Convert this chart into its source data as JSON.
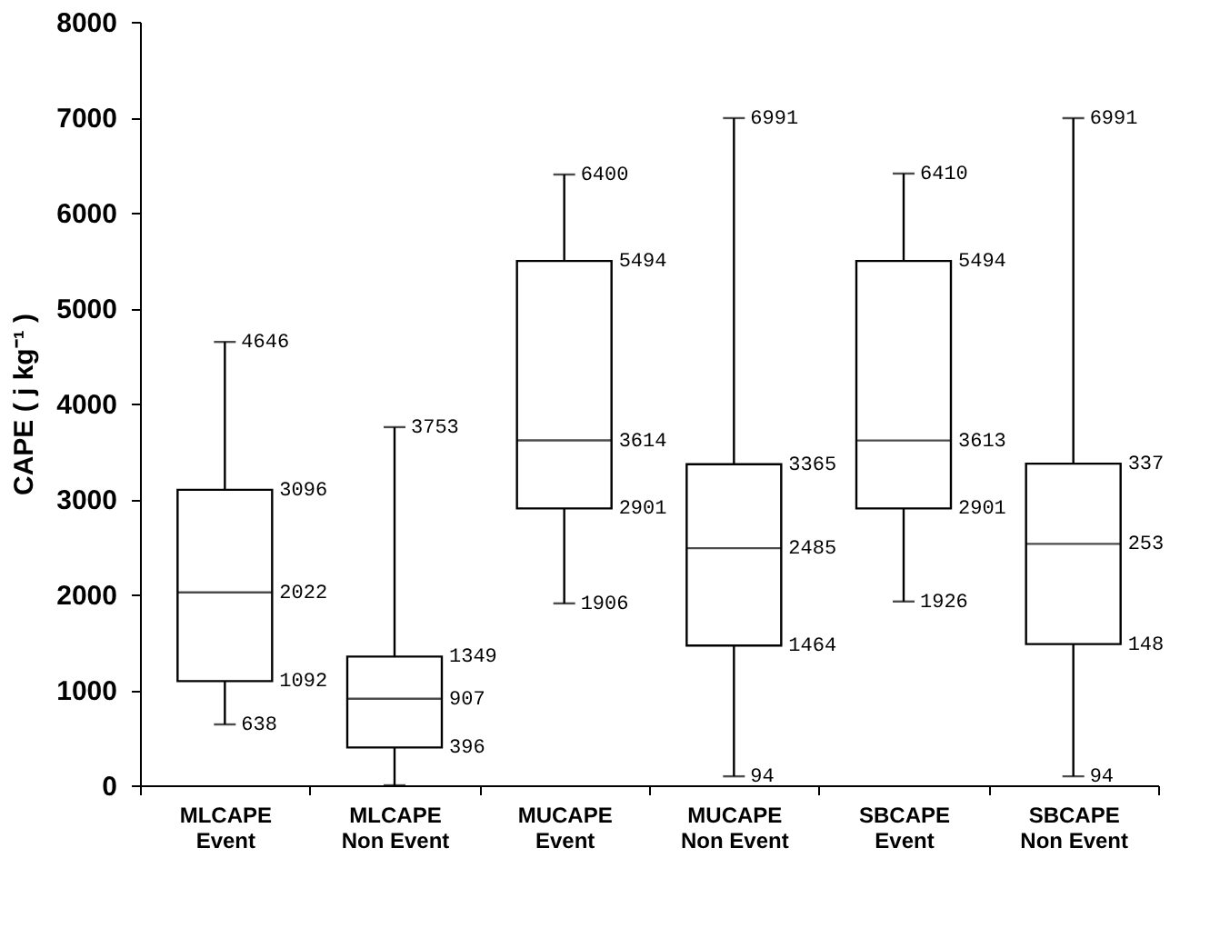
{
  "chart_data": {
    "type": "box",
    "ylabel": "CAPE ( j kg⁻¹ )",
    "categories": [
      "MLCAPE\nEvent",
      "MLCAPE\nNon Event",
      "MUCAPE\nEvent",
      "MUCAPE\nNon Event",
      "SBCAPE\nEvent",
      "SBCAPE\nNon Event"
    ],
    "boxes": [
      {
        "low": 638,
        "q1": 1092,
        "median": 2022,
        "q3": 3096,
        "high": 4646
      },
      {
        "low": 0,
        "q1": 396,
        "median": 907,
        "q3": 1349,
        "high": 3753
      },
      {
        "low": 1906,
        "q1": 2901,
        "median": 3614,
        "q3": 5494,
        "high": 6400
      },
      {
        "low": 94,
        "q1": 1464,
        "median": 2485,
        "q3": 3365,
        "high": 6991
      },
      {
        "low": 1926,
        "q1": 2901,
        "median": 3613,
        "q3": 5494,
        "high": 6410
      },
      {
        "low": 94,
        "q1": 1480,
        "median": 2530,
        "q3": 3370,
        "high": 6991
      }
    ],
    "value_labels": [
      [
        "638",
        "1092",
        "2022",
        "3096",
        "4646"
      ],
      [
        null,
        "396",
        "907",
        "1349",
        "3753"
      ],
      [
        "1906",
        "2901",
        "3614",
        "5494",
        "6400"
      ],
      [
        "94",
        "1464",
        "2485",
        "3365",
        "6991"
      ],
      [
        "1926",
        "2901",
        "3613",
        "5494",
        "6410"
      ],
      [
        "94",
        "148",
        "253",
        "337",
        "6991"
      ]
    ],
    "ylim": [
      0,
      8000
    ],
    "yticks": [
      0,
      1000,
      2000,
      3000,
      4000,
      5000,
      6000,
      7000,
      8000
    ],
    "grid": false,
    "color": "#000000"
  }
}
